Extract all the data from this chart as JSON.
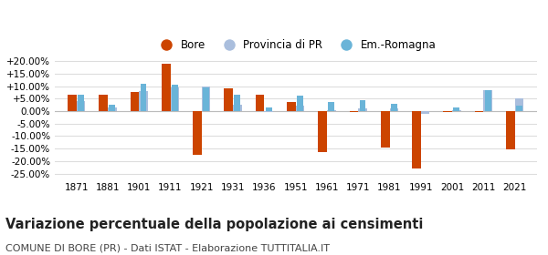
{
  "years": [
    1871,
    1881,
    1901,
    1911,
    1921,
    1931,
    1936,
    1951,
    1961,
    1971,
    1981,
    1991,
    2001,
    2011,
    2021
  ],
  "bore": [
    6.5,
    6.5,
    7.5,
    19.0,
    -17.5,
    9.0,
    6.5,
    3.8,
    -16.5,
    -0.5,
    -14.5,
    -23.0,
    -0.5,
    -0.5,
    -15.5
  ],
  "provincia": [
    4.0,
    1.5,
    8.0,
    9.5,
    10.0,
    2.5,
    -0.5,
    2.0,
    0.5,
    1.2,
    1.0,
    -1.0,
    0.5,
    8.5,
    5.0
  ],
  "emromagna": [
    6.5,
    2.5,
    11.0,
    10.5,
    9.5,
    6.5,
    1.5,
    6.0,
    3.5,
    4.5,
    3.0,
    0.0,
    1.5,
    8.5,
    2.0
  ],
  "bore_color": "#cc4400",
  "provincia_color": "#aabedd",
  "emromagna_color": "#6ab4d8",
  "background_color": "#ffffff",
  "grid_color": "#dddddd",
  "title": "Variazione percentuale della popolazione ai censimenti",
  "subtitle": "COMUNE DI BORE (PR) - Dati ISTAT - Elaborazione TUTTITALIA.IT",
  "ylim": [
    -27,
    22
  ],
  "yticks": [
    -25,
    -20,
    -15,
    -10,
    -5,
    0,
    5,
    10,
    15,
    20
  ],
  "ytick_labels": [
    "-25.00%",
    "-20.00%",
    "-15.00%",
    "-10.00%",
    "-5.00%",
    "0.00%",
    "+5.00%",
    "+10.00%",
    "+15.00%",
    "+20.00%"
  ],
  "legend_labels": [
    "Bore",
    "Provincia di PR",
    "Em.-Romagna"
  ],
  "title_fontsize": 10.5,
  "subtitle_fontsize": 8.0,
  "bar_width": 0.28
}
